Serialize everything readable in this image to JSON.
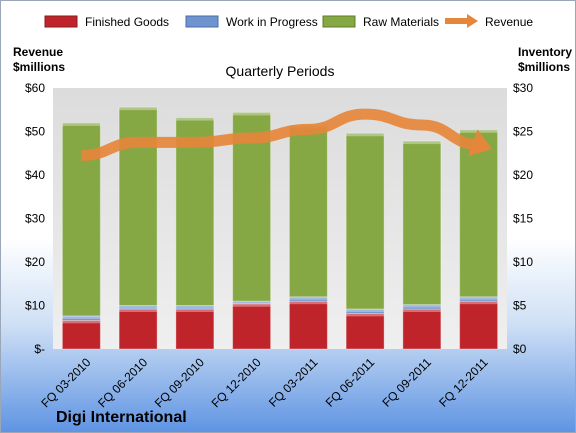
{
  "chart_data": {
    "type": "bar",
    "stacked": true,
    "title": "Quarterly Periods",
    "company": "Digi International",
    "categories": [
      "FQ 03-2010",
      "FQ 06-2010",
      "FQ 09-2010",
      "FQ 12-2010",
      "FQ 03-2011",
      "FQ 06-2011",
      "FQ 09-2011",
      "FQ 12-2011"
    ],
    "left_axis": {
      "label_line1": "Revenue",
      "label_line2": "$millions",
      "range": [
        0,
        60
      ],
      "ticks": [
        0,
        10,
        20,
        30,
        40,
        50,
        60
      ],
      "tick_labels": [
        "$-",
        "$10",
        "$20",
        "$30",
        "$40",
        "$50",
        "$60"
      ]
    },
    "right_axis": {
      "label_line1": "Inventory",
      "label_line2": "$millions",
      "range": [
        0,
        30
      ],
      "ticks": [
        0,
        5,
        10,
        15,
        20,
        25,
        30
      ],
      "tick_labels": [
        "$0",
        "$5",
        "$10",
        "$15",
        "$20",
        "$25",
        "$30"
      ]
    },
    "series": [
      {
        "name": "Finished Goods",
        "axis": "right",
        "color": "#c0242b",
        "values": [
          3.3,
          4.6,
          4.6,
          5.2,
          5.5,
          4.1,
          4.6,
          5.5
        ]
      },
      {
        "name": "Work in Progress",
        "axis": "right",
        "color": "#6f93cf",
        "values": [
          0.5,
          0.4,
          0.4,
          0.3,
          0.5,
          0.5,
          0.5,
          0.5
        ]
      },
      {
        "name": "Raw Materials",
        "axis": "right",
        "color": "#86a844",
        "values": [
          22.2,
          22.8,
          21.6,
          21.7,
          19.7,
          20.2,
          18.8,
          19.2
        ]
      },
      {
        "name": "Revenue",
        "axis": "left",
        "type": "line",
        "color": "#e6863b",
        "values": [
          44.5,
          47.5,
          47.5,
          48.5,
          50.5,
          54.0,
          51.5,
          47.0
        ]
      }
    ],
    "grid": false,
    "legend_position": "top"
  }
}
